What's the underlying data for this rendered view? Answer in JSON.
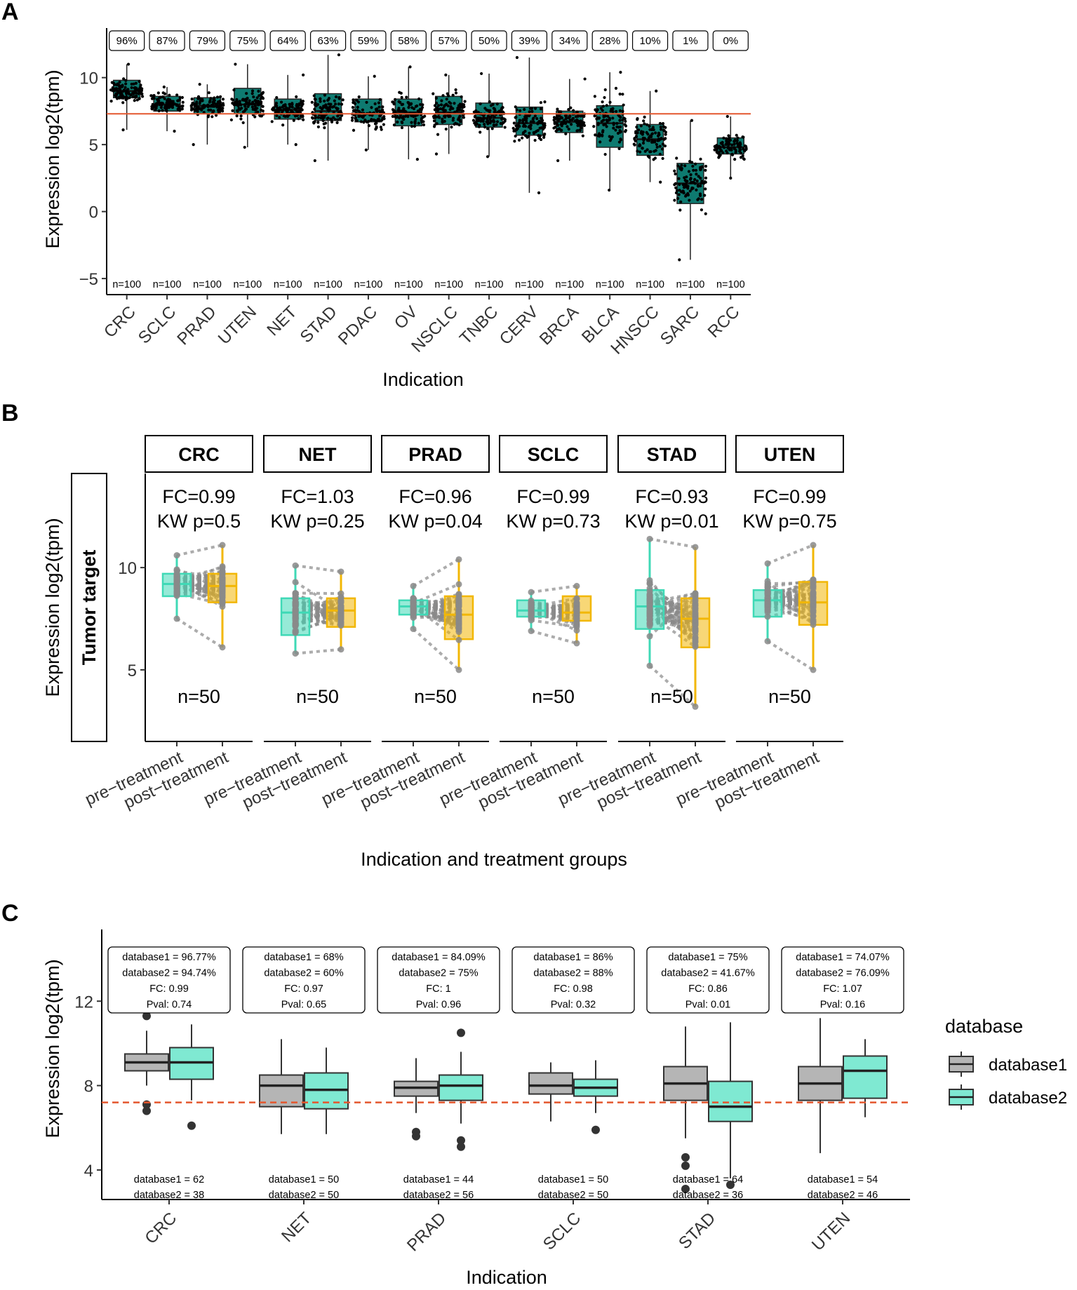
{
  "panels": {
    "A": {
      "letter": "A"
    },
    "B": {
      "letter": "B"
    },
    "C": {
      "letter": "C"
    }
  },
  "colors": {
    "boxA": "#0e7a70",
    "refLine": "#e4572e",
    "pre": "#3fd9b6",
    "post": "#f2b705",
    "paired": "#8a8a8a",
    "db1": "#b5b5b5",
    "db2": "#7fe9d2"
  },
  "chart_data": [
    {
      "panel": "A",
      "type": "box",
      "xlabel": "Indication",
      "ylabel": "Expression log2(tpm)",
      "ylim": [
        -6.2,
        13.7
      ],
      "yticks": [
        -5,
        0,
        5,
        10
      ],
      "ytick_labels": [
        "−5",
        "0",
        "5",
        "10"
      ],
      "threshold": 7.3,
      "categories": [
        "CRC",
        "SCLC",
        "PRAD",
        "UTEN",
        "NET",
        "STAD",
        "PDAC",
        "OV",
        "NSCLC",
        "TNBC",
        "CERV",
        "BRCA",
        "BLCA",
        "HNSCC",
        "SARC",
        "RCC"
      ],
      "percent_labels": [
        "96%",
        "87%",
        "79%",
        "75%",
        "64%",
        "63%",
        "59%",
        "58%",
        "57%",
        "50%",
        "39%",
        "34%",
        "28%",
        "10%",
        "1%",
        "0%"
      ],
      "n_labels": [
        "n=100",
        "n=100",
        "n=100",
        "n=100",
        "n=100",
        "n=100",
        "n=100",
        "n=100",
        "n=100",
        "n=100",
        "n=100",
        "n=100",
        "n=100",
        "n=100",
        "n=100",
        "n=100"
      ],
      "boxes": [
        {
          "q1": 8.5,
          "med": 9.0,
          "q3": 9.8,
          "lo": 6.1,
          "hi": 11.0
        },
        {
          "q1": 7.5,
          "med": 8.0,
          "q3": 8.6,
          "lo": 6.0,
          "hi": 9.3
        },
        {
          "q1": 7.3,
          "med": 7.9,
          "q3": 8.5,
          "lo": 5.0,
          "hi": 9.5
        },
        {
          "q1": 7.3,
          "med": 8.0,
          "q3": 9.2,
          "lo": 4.8,
          "hi": 11.0
        },
        {
          "q1": 6.9,
          "med": 7.6,
          "q3": 8.4,
          "lo": 5.0,
          "hi": 10.2
        },
        {
          "q1": 6.8,
          "med": 7.5,
          "q3": 8.8,
          "lo": 3.8,
          "hi": 11.7
        },
        {
          "q1": 6.7,
          "med": 7.3,
          "q3": 8.4,
          "lo": 4.6,
          "hi": 10.1
        },
        {
          "q1": 6.4,
          "med": 7.4,
          "q3": 8.4,
          "lo": 3.9,
          "hi": 10.8
        },
        {
          "q1": 6.5,
          "med": 7.4,
          "q3": 8.6,
          "lo": 4.3,
          "hi": 10.2
        },
        {
          "q1": 6.3,
          "med": 7.0,
          "q3": 8.1,
          "lo": 4.1,
          "hi": 10.3
        },
        {
          "q1": 5.7,
          "med": 6.6,
          "q3": 7.8,
          "lo": 1.4,
          "hi": 11.5
        },
        {
          "q1": 5.9,
          "med": 6.7,
          "q3": 7.5,
          "lo": 3.8,
          "hi": 9.9
        },
        {
          "q1": 4.8,
          "med": 6.6,
          "q3": 7.9,
          "lo": 1.6,
          "hi": 10.4
        },
        {
          "q1": 4.2,
          "med": 5.4,
          "q3": 6.5,
          "lo": 2.2,
          "hi": 9.0
        },
        {
          "q1": 0.6,
          "med": 2.1,
          "q3": 3.6,
          "lo": -3.6,
          "hi": 6.8
        },
        {
          "q1": 4.3,
          "med": 4.8,
          "q3": 5.5,
          "lo": 2.5,
          "hi": 7.1
        }
      ]
    },
    {
      "panel": "B",
      "type": "paired-box",
      "xlabel": "Indication and treatment groups",
      "ylabel": "Expression log2(tpm)",
      "row_strip": "Tumor target",
      "ylim": [
        1.5,
        14.6
      ],
      "yticks": [
        5,
        10
      ],
      "ytick_labels": [
        "5",
        "10"
      ],
      "group_labels": [
        "pre−treatment",
        "post−treatment"
      ],
      "facets": [
        {
          "name": "CRC",
          "fc": "FC=0.99",
          "kw": "KW p=0.5",
          "n": "n=50",
          "pre": {
            "q1": 8.6,
            "med": 9.2,
            "q3": 9.7,
            "lo": 7.5,
            "hi": 10.6
          },
          "post": {
            "q1": 8.3,
            "med": 9.1,
            "q3": 9.7,
            "lo": 6.1,
            "hi": 11.1
          }
        },
        {
          "name": "NET",
          "fc": "FC=1.03",
          "kw": "KW p=0.25",
          "n": "n=50",
          "pre": {
            "q1": 6.7,
            "med": 7.8,
            "q3": 8.5,
            "lo": 5.8,
            "hi": 10.1
          },
          "post": {
            "q1": 7.1,
            "med": 7.9,
            "q3": 8.5,
            "lo": 6.0,
            "hi": 9.8
          }
        },
        {
          "name": "PRAD",
          "fc": "FC=0.96",
          "kw": "KW p=0.04",
          "n": "n=50",
          "pre": {
            "q1": 7.7,
            "med": 8.1,
            "q3": 8.4,
            "lo": 7.0,
            "hi": 9.1
          },
          "post": {
            "q1": 6.5,
            "med": 7.7,
            "q3": 8.6,
            "lo": 5.0,
            "hi": 10.4
          }
        },
        {
          "name": "SCLC",
          "fc": "FC=0.99",
          "kw": "KW p=0.73",
          "n": "n=50",
          "pre": {
            "q1": 7.6,
            "med": 7.9,
            "q3": 8.4,
            "lo": 6.9,
            "hi": 8.8
          },
          "post": {
            "q1": 7.4,
            "med": 7.8,
            "q3": 8.6,
            "lo": 6.3,
            "hi": 9.1
          }
        },
        {
          "name": "STAD",
          "fc": "FC=0.93",
          "kw": "KW p=0.01",
          "n": "n=50",
          "pre": {
            "q1": 7.0,
            "med": 8.1,
            "q3": 8.9,
            "lo": 5.2,
            "hi": 11.4
          },
          "post": {
            "q1": 6.1,
            "med": 7.5,
            "q3": 8.5,
            "lo": 3.2,
            "hi": 11.0
          }
        },
        {
          "name": "UTEN",
          "fc": "FC=0.99",
          "kw": "KW p=0.75",
          "n": "n=50",
          "pre": {
            "q1": 7.6,
            "med": 8.4,
            "q3": 8.9,
            "lo": 6.4,
            "hi": 10.2
          },
          "post": {
            "q1": 7.2,
            "med": 8.3,
            "q3": 9.3,
            "lo": 5.0,
            "hi": 11.1
          }
        }
      ]
    },
    {
      "panel": "C",
      "type": "grouped-box",
      "xlabel": "Indication",
      "ylabel": "Expression log2(tpm)",
      "ylim": [
        2.6,
        15.4
      ],
      "yticks": [
        4,
        8,
        12
      ],
      "ytick_labels": [
        "4",
        "8",
        "12"
      ],
      "threshold": 7.2,
      "legend": {
        "title": "database",
        "entries": [
          "database1",
          "database2"
        ]
      },
      "categories": [
        {
          "name": "CRC",
          "stats": [
            "database1 = 96.77%",
            "database2 = 94.74%",
            "FC: 0.99",
            "Pval: 0.74"
          ],
          "n": [
            "database1 = 62",
            "database2 = 38"
          ],
          "db1": {
            "q1": 8.7,
            "med": 9.1,
            "q3": 9.5,
            "lo": 8.0,
            "hi": 10.6,
            "out": [
              11.3,
              7.1,
              6.8
            ]
          },
          "db2": {
            "q1": 8.3,
            "med": 9.1,
            "q3": 9.8,
            "lo": 7.3,
            "hi": 10.9,
            "out": [
              6.1
            ]
          }
        },
        {
          "name": "NET",
          "stats": [
            "database1 = 68%",
            "database2 = 60%",
            "FC: 0.97",
            "Pval: 0.65"
          ],
          "n": [
            "database1 = 50",
            "database2 = 50"
          ],
          "db1": {
            "q1": 7.0,
            "med": 8.0,
            "q3": 8.5,
            "lo": 5.7,
            "hi": 10.2,
            "out": []
          },
          "db2": {
            "q1": 6.9,
            "med": 7.8,
            "q3": 8.6,
            "lo": 5.7,
            "hi": 9.8,
            "out": []
          }
        },
        {
          "name": "PRAD",
          "stats": [
            "database1 = 84.09%",
            "database2 = 75%",
            "FC: 1",
            "Pval: 0.96"
          ],
          "n": [
            "database1 = 44",
            "database2 = 56"
          ],
          "db1": {
            "q1": 7.5,
            "med": 7.9,
            "q3": 8.2,
            "lo": 6.7,
            "hi": 9.3,
            "out": [
              5.8,
              5.6
            ]
          },
          "db2": {
            "q1": 7.3,
            "med": 8.0,
            "q3": 8.5,
            "lo": 6.2,
            "hi": 9.6,
            "out": [
              10.5,
              5.4,
              5.1
            ]
          }
        },
        {
          "name": "SCLC",
          "stats": [
            "database1 = 86%",
            "database2 = 88%",
            "FC: 0.98",
            "Pval: 0.32"
          ],
          "n": [
            "database1 = 50",
            "database2 = 50"
          ],
          "db1": {
            "q1": 7.6,
            "med": 8.0,
            "q3": 8.6,
            "lo": 6.3,
            "hi": 9.1,
            "out": []
          },
          "db2": {
            "q1": 7.5,
            "med": 7.9,
            "q3": 8.3,
            "lo": 6.7,
            "hi": 9.2,
            "out": [
              5.9
            ]
          }
        },
        {
          "name": "STAD",
          "stats": [
            "database1 = 75%",
            "database2 = 41.67%",
            "FC: 0.86",
            "Pval: 0.01"
          ],
          "n": [
            "database1 = 64",
            "database2 = 36"
          ],
          "db1": {
            "q1": 7.3,
            "med": 8.1,
            "q3": 8.9,
            "lo": 5.5,
            "hi": 10.8,
            "out": [
              4.6,
              4.2,
              3.1
            ]
          },
          "db2": {
            "q1": 6.3,
            "med": 7.0,
            "q3": 8.2,
            "lo": 3.6,
            "hi": 11.0,
            "out": [
              3.3
            ]
          }
        },
        {
          "name": "UTEN",
          "stats": [
            "database1 = 74.07%",
            "database2 = 76.09%",
            "FC: 1.07",
            "Pval: 0.16"
          ],
          "n": [
            "database1 = 54",
            "database2 = 46"
          ],
          "db1": {
            "q1": 7.3,
            "med": 8.1,
            "q3": 8.9,
            "lo": 4.8,
            "hi": 11.2,
            "out": []
          },
          "db2": {
            "q1": 7.4,
            "med": 8.7,
            "q3": 9.4,
            "lo": 6.5,
            "hi": 10.2,
            "out": []
          }
        }
      ]
    }
  ]
}
